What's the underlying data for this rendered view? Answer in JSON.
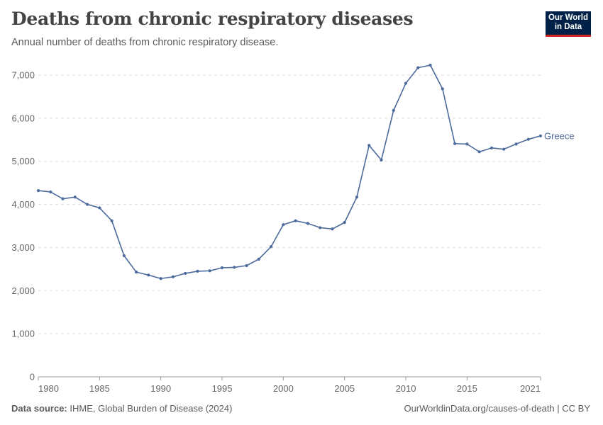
{
  "header": {
    "title": "Deaths from chronic respiratory diseases",
    "subtitle": "Annual number of deaths from chronic respiratory disease."
  },
  "logo": {
    "line1": "Our World",
    "line2": "in Data"
  },
  "footer": {
    "source_label": "Data source:",
    "source_text": "IHME, Global Burden of Disease (2024)",
    "url": "OurWorldinData.org/causes-of-death | CC BY"
  },
  "colors": {
    "series": "#4c6a9c",
    "grid": "#dddddd",
    "axis": "#999999",
    "brand": "#002147",
    "brand_accent": "#ce261e"
  },
  "chart_data": {
    "type": "line",
    "xlim": [
      1980,
      2021
    ],
    "ylim": [
      0,
      7000
    ],
    "yticks": [
      0,
      1000,
      2000,
      3000,
      4000,
      5000,
      6000,
      7000
    ],
    "ytick_labels": [
      "0",
      "1,000",
      "2,000",
      "3,000",
      "4,000",
      "5,000",
      "6,000",
      "7,000"
    ],
    "xticks": [
      1980,
      1985,
      1990,
      1995,
      2000,
      2005,
      2010,
      2015,
      2021
    ],
    "xtick_labels": [
      "1980",
      "1985",
      "1990",
      "1995",
      "2000",
      "2005",
      "2010",
      "2015",
      "2021"
    ],
    "grid": "horizontal-dashed",
    "legend": "end-of-line label",
    "series": [
      {
        "name": "Greece",
        "x": [
          1980,
          1981,
          1982,
          1983,
          1984,
          1985,
          1986,
          1987,
          1988,
          1989,
          1990,
          1991,
          1992,
          1993,
          1994,
          1995,
          1996,
          1997,
          1998,
          1999,
          2000,
          2001,
          2002,
          2003,
          2004,
          2005,
          2006,
          2007,
          2008,
          2009,
          2010,
          2011,
          2012,
          2013,
          2014,
          2015,
          2016,
          2017,
          2018,
          2019,
          2020,
          2021
        ],
        "y": [
          4320,
          4290,
          4130,
          4170,
          4000,
          3920,
          3620,
          2810,
          2430,
          2360,
          2280,
          2320,
          2400,
          2450,
          2460,
          2530,
          2540,
          2580,
          2730,
          3020,
          3530,
          3620,
          3560,
          3460,
          3430,
          3580,
          4170,
          5370,
          5030,
          6180,
          6810,
          7170,
          7230,
          6680,
          5410,
          5400,
          5220,
          5310,
          5280,
          5400,
          5510,
          5590
        ]
      }
    ]
  }
}
